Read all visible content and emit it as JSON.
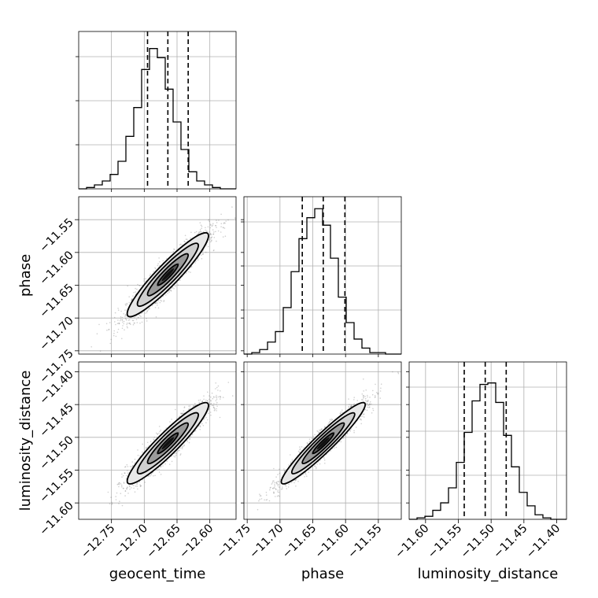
{
  "chart_data": {
    "type": "corner",
    "parameters": [
      "geocent_time",
      "phase",
      "luminosity_distance"
    ],
    "axis_labels": {
      "geocent_time": "geocent_time",
      "phase": "phase",
      "luminosity_distance": "luminosity_distance"
    },
    "ranges": {
      "geocent_time": [
        -12.8,
        -12.56
      ],
      "phase": [
        -11.755,
        -11.515
      ],
      "luminosity_distance": [
        -11.625,
        -11.385
      ]
    },
    "ticks": {
      "geocent_time": [
        {
          "v": -12.75,
          "label": "−12.75"
        },
        {
          "v": -12.7,
          "label": "−12.70"
        },
        {
          "v": -12.65,
          "label": "−12.65"
        },
        {
          "v": -12.6,
          "label": "−12.60"
        }
      ],
      "phase": [
        {
          "v": -11.75,
          "label": "−11.75"
        },
        {
          "v": -11.7,
          "label": "−11.70"
        },
        {
          "v": -11.65,
          "label": "−11.65"
        },
        {
          "v": -11.6,
          "label": "−11.60"
        },
        {
          "v": -11.55,
          "label": "−11.55"
        }
      ],
      "luminosity_distance": [
        {
          "v": -11.6,
          "label": "−11.60"
        },
        {
          "v": -11.55,
          "label": "−11.55"
        },
        {
          "v": -11.5,
          "label": "−11.50"
        },
        {
          "v": -11.45,
          "label": "−11.45"
        },
        {
          "v": -11.4,
          "label": "−11.40"
        }
      ]
    },
    "histograms": {
      "geocent_time": {
        "edges_start": -12.8,
        "bin_width": 0.012,
        "counts": [
          0,
          1,
          3,
          6,
          11,
          21,
          40,
          62,
          91,
          107,
          100,
          76,
          51,
          30,
          13,
          6,
          3,
          1,
          0,
          0
        ],
        "quantiles": [
          -12.695,
          -12.664,
          -12.633
        ],
        "hist_max": 120
      },
      "phase": {
        "edges_start": -11.755,
        "bin_width": 0.012,
        "counts": [
          0,
          1,
          3,
          8,
          15,
          31,
          55,
          77,
          91,
          97,
          86,
          64,
          38,
          21,
          10,
          4,
          1,
          1,
          0,
          0
        ],
        "quantiles": [
          -11.666,
          -11.634,
          -11.601
        ],
        "hist_max": 105
      },
      "luminosity_distance": {
        "edges_start": -11.625,
        "bin_width": 0.012,
        "counts": [
          0,
          1,
          2,
          6,
          11,
          21,
          38,
          58,
          79,
          90,
          91,
          78,
          56,
          35,
          18,
          9,
          3,
          1,
          0,
          0
        ],
        "quantiles": [
          -11.541,
          -11.509,
          -11.477
        ],
        "hist_max": 105
      }
    },
    "pairs": [
      {
        "x": "geocent_time",
        "y": "phase",
        "mean": [
          -12.664,
          -11.634
        ],
        "std": [
          0.031,
          0.032
        ],
        "corr": 0.93
      },
      {
        "x": "geocent_time",
        "y": "luminosity_distance",
        "mean": [
          -12.664,
          -11.509
        ],
        "std": [
          0.031,
          0.031
        ],
        "corr": 0.93
      },
      {
        "x": "phase",
        "y": "luminosity_distance",
        "mean": [
          -11.634,
          -11.509
        ],
        "std": [
          0.032,
          0.031
        ],
        "corr": 0.95
      }
    ],
    "contour_levels_sigma": [
      0.5,
      1.0,
      1.5,
      2.0
    ],
    "grid": true
  }
}
